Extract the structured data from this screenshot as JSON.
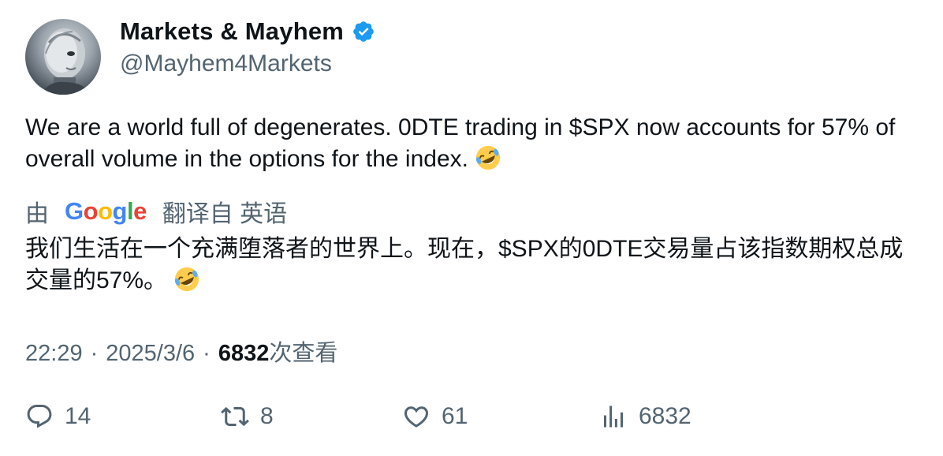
{
  "user": {
    "display_name": "Markets & Mayhem",
    "handle": "@Mayhem4Markets"
  },
  "tweet": {
    "text": "We are a world full of degenerates. 0DTE trading in $SPX now accounts for 57% of overall volume in the options for the index.",
    "emoji": "rolling-on-floor-laughing-icon"
  },
  "translation": {
    "by": "由",
    "provider": "Google",
    "from": "翻译自 英语",
    "text": "我们生活在一个充满堕落者的世界上。现在，$SPX的0DTE交易量占该指数期权总成交量的57%。"
  },
  "meta": {
    "time": "22:29",
    "separator": "·",
    "date": "2025/3/6",
    "views_count": "6832",
    "views_label": "次查看"
  },
  "actions": {
    "replies": "14",
    "retweets": "8",
    "likes": "61",
    "views": "6832"
  },
  "colors": {
    "text": "#0f1419",
    "secondary": "#536471",
    "verified": "#1d9bf0"
  }
}
